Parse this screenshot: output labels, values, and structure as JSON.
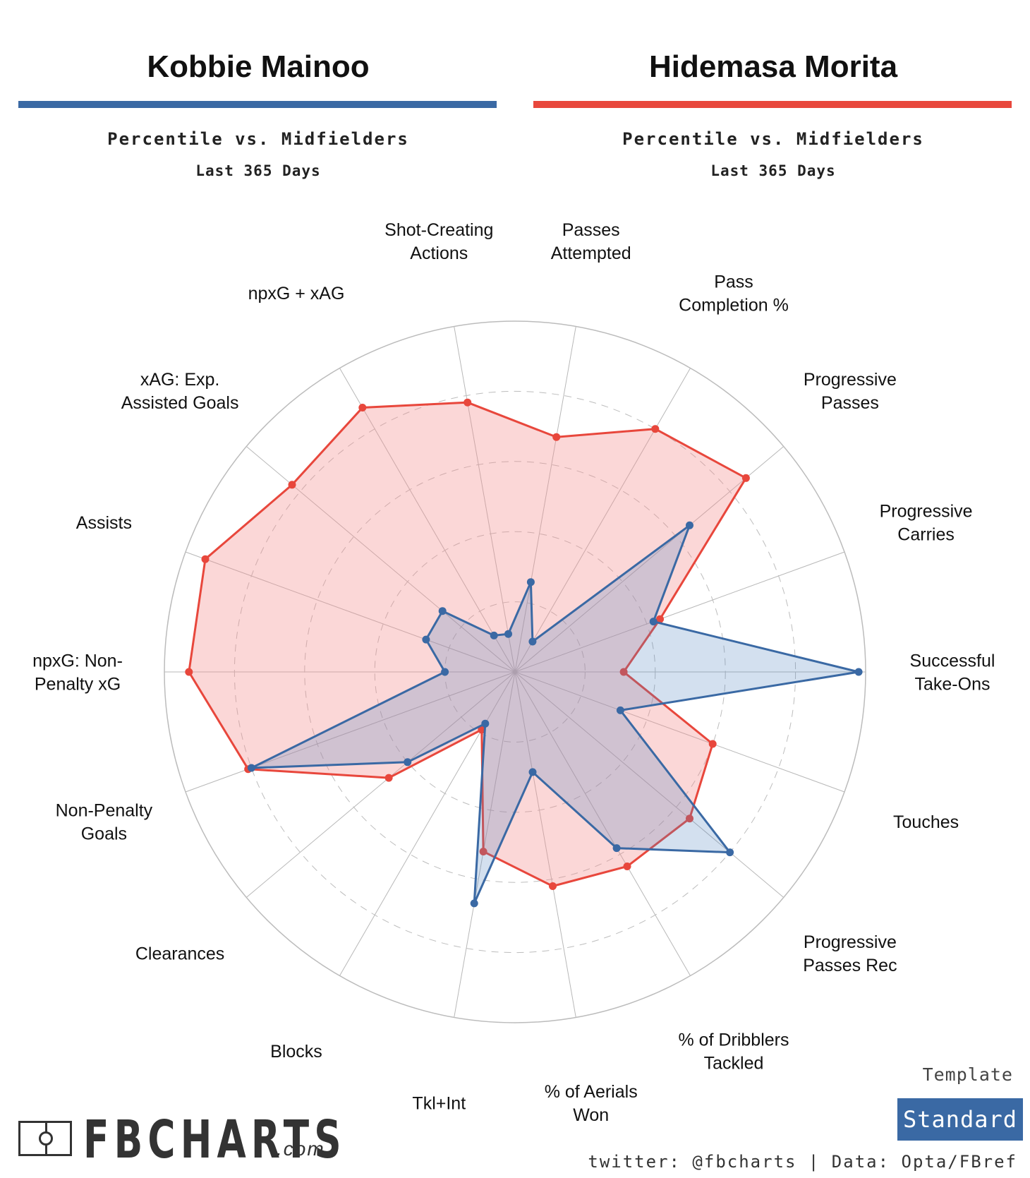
{
  "players": [
    {
      "name": "Kobbie Mainoo",
      "color": "#3a69a4",
      "subtitle": "Percentile vs. Midfielders",
      "period": "Last 365 Days"
    },
    {
      "name": "Hidemasa Morita",
      "color": "#e8473c",
      "subtitle": "Percentile vs. Midfielders",
      "period": "Last 365 Days"
    }
  ],
  "chart_data": {
    "type": "radar",
    "title": "Kobbie Mainoo vs Hidemasa Morita — Percentile vs. Midfielders, Last 365 Days",
    "range": [
      0,
      100
    ],
    "grid_levels": [
      20,
      40,
      60,
      80,
      100
    ],
    "categories": [
      "Successful Take-Ons",
      "Progressive Carries",
      "Progressive Passes",
      "Pass Completion %",
      "Passes Attempted",
      "Shot-Creating Actions",
      "npxG + xAG",
      "xAG: Exp. Assisted Goals",
      "Assists",
      "npxG: Non-Penalty xG",
      "Non-Penalty Goals",
      "Clearances",
      "Blocks",
      "Tkl+Int",
      "% of Aerials Won",
      "% of Dribblers Tackled",
      "Progressive Passes Rec",
      "Touches"
    ],
    "series": [
      {
        "name": "Hidemasa Morita",
        "color": "#e8473c",
        "fill": "rgba(243, 140, 140, 0.35)",
        "values": [
          31,
          44,
          86,
          80,
          68,
          78,
          87,
          83,
          94,
          93,
          81,
          47,
          19,
          52,
          62,
          64,
          65,
          60
        ]
      },
      {
        "name": "Kobbie Mainoo",
        "color": "#3a69a4",
        "fill": "rgba(80, 130, 190, 0.25)",
        "values": [
          98,
          42,
          65,
          10,
          26,
          11,
          12,
          27,
          27,
          20,
          80,
          40,
          17,
          67,
          29,
          58,
          80,
          32
        ]
      }
    ]
  },
  "branding": {
    "logo_text": "FBCHARTS",
    "logo_suffix": ".com",
    "template_label": "Template",
    "template_value": "Standard",
    "credit": "twitter: @fbcharts | Data: Opta/FBref"
  }
}
